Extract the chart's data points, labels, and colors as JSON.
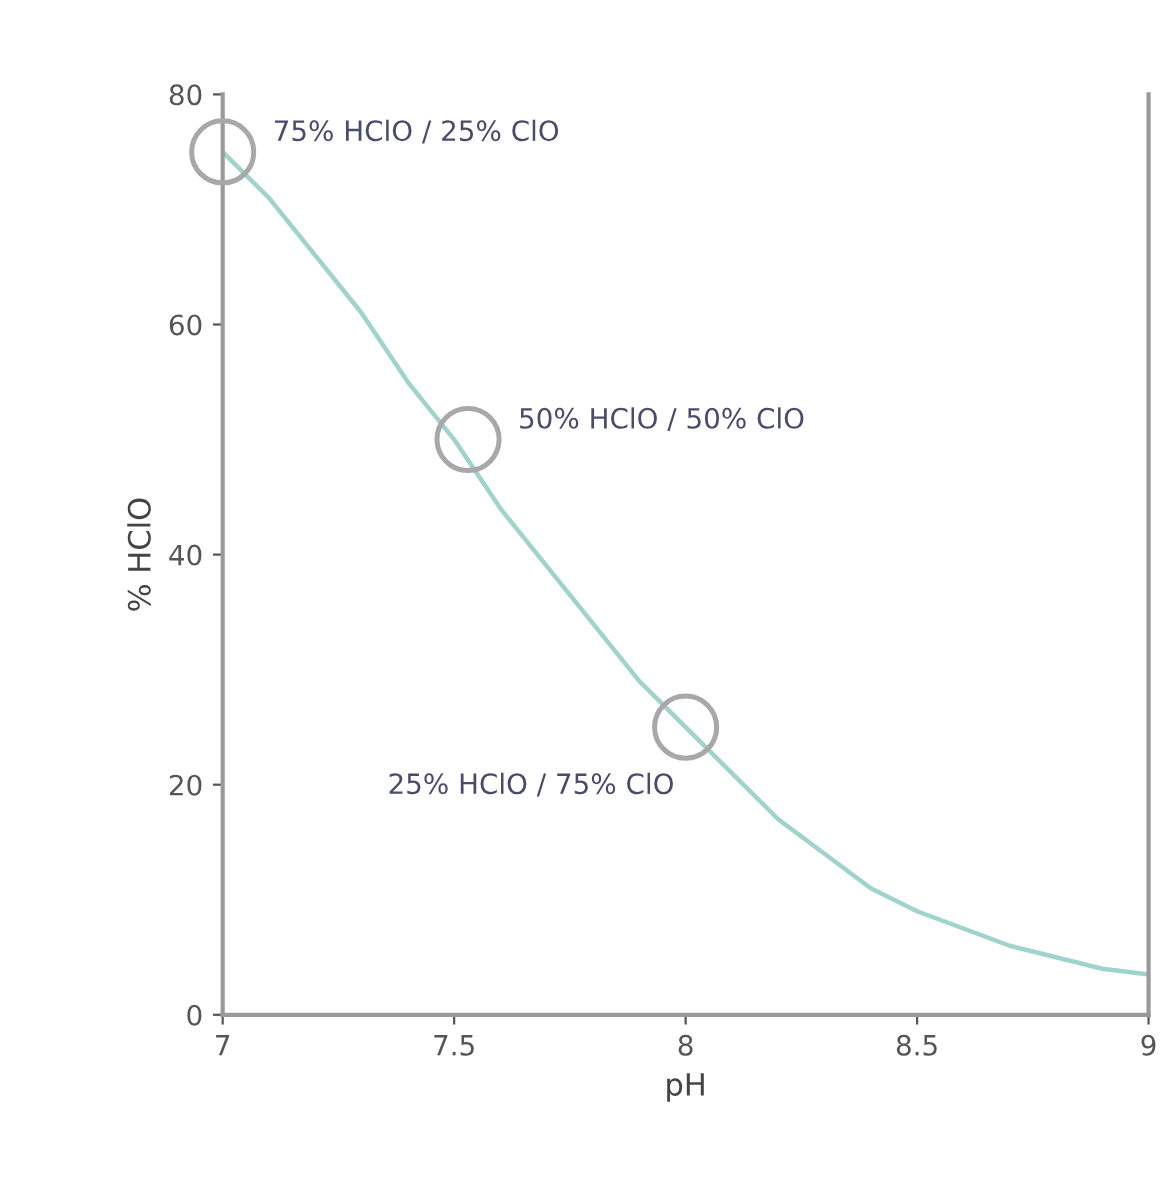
{
  "chart_data": {
    "type": "line",
    "xlabel": "pH",
    "ylabel": "% HClO",
    "xlim": [
      7,
      9
    ],
    "ylim": [
      0,
      80
    ],
    "xticks": [
      7,
      7.5,
      8,
      8.5,
      9
    ],
    "yticks": [
      0,
      20,
      40,
      60,
      80
    ],
    "grid": false,
    "series": [
      {
        "color": "#9fd3cc",
        "x": [
          7.0,
          7.1,
          7.2,
          7.3,
          7.4,
          7.5,
          7.6,
          7.7,
          7.8,
          7.9,
          8.0,
          8.1,
          8.2,
          8.3,
          8.4,
          8.5,
          8.6,
          8.7,
          8.8,
          8.9,
          9.0
        ],
        "values": [
          75,
          71,
          66,
          61,
          55,
          50,
          44,
          39,
          34,
          29,
          25,
          21,
          17,
          14,
          11,
          9,
          7.5,
          6,
          5,
          4,
          3.5
        ]
      },
      {
        "type": "scatter",
        "marker": "circle",
        "color": "#a8a8a8",
        "x": [
          7.0,
          7.53,
          8.0
        ],
        "values": [
          75,
          50,
          25
        ]
      }
    ],
    "annotations": [
      {
        "text": "75% HClO / 25% ClO",
        "x": 7.0,
        "y": 75
      },
      {
        "text": "50% HClO / 50% ClO",
        "x": 7.53,
        "y": 50
      },
      {
        "text": "25% HClO / 75% ClO",
        "x": 8.0,
        "y": 25
      }
    ]
  }
}
